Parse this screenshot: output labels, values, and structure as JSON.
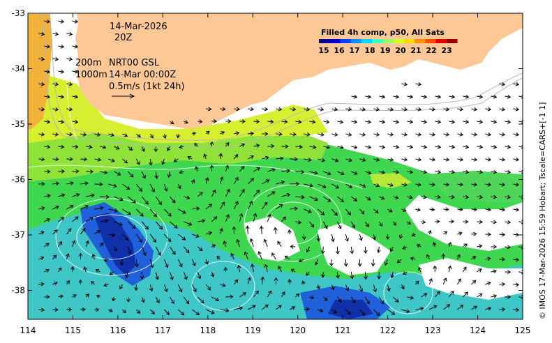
{
  "map": {
    "date_label": "14-Mar-2026",
    "time_label": "20Z",
    "isobath_1": "200m",
    "isobath_2": "1000m",
    "product_label": "NRT00 GSL",
    "product_time": "14-Mar 00:00Z",
    "vector_scale_label": "0.5m/s (1kt 24h)",
    "credit": "© IMOS 17-Mar-2026 15:59 Hobart; Tscale=CARS+[-1 1]",
    "land_color": "#fdc896",
    "x_axis": {
      "ticks": [
        "114",
        "115",
        "116",
        "117",
        "118",
        "119",
        "120",
        "121",
        "122",
        "123",
        "124",
        "125"
      ],
      "range": [
        114,
        125
      ]
    },
    "y_axis": {
      "ticks": [
        "-33",
        "-34",
        "-35",
        "-36",
        "-37",
        "-38"
      ],
      "range": [
        -38.5,
        -33
      ]
    },
    "legend": {
      "title": "Filled 4h comp, p50, All Sats",
      "labels": [
        "15",
        "16",
        "17",
        "18",
        "19",
        "20",
        "21",
        "22",
        "23"
      ],
      "colors": [
        "#00008f",
        "#0000d0",
        "#0040ff",
        "#0090ff",
        "#00d8ff",
        "#40ffc0",
        "#90ff70",
        "#d8ff28",
        "#ffd800",
        "#ff9000",
        "#ff4800",
        "#e00000",
        "#900000"
      ]
    },
    "icons": {
      "vector_scale": "arrow-right-icon"
    }
  }
}
